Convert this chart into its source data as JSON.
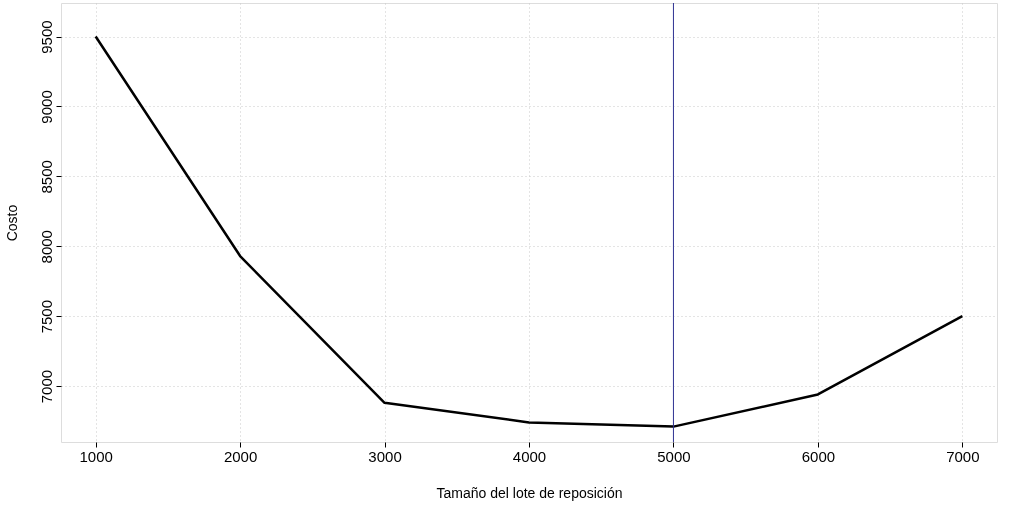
{
  "chart_data": {
    "type": "line",
    "xlabel": "Tamaño del lote de reposición",
    "ylabel": "Costo",
    "x": [
      1000,
      2000,
      3000,
      4000,
      5000,
      6000,
      7000
    ],
    "series": [
      {
        "color": "#000000",
        "values": [
          9500,
          7930,
          6880,
          6740,
          6710,
          6940,
          7500
        ]
      }
    ],
    "xlim": [
      760,
      7240
    ],
    "xticks": [
      1000,
      2000,
      3000,
      4000,
      5000,
      6000,
      7000
    ],
    "ylim": [
      6600,
      9740
    ],
    "yticks": [
      7000,
      7500,
      8000,
      8500,
      9000,
      9500
    ],
    "grid": true,
    "marker": "none",
    "line_style": "solid",
    "ref_lines": [
      {
        "axis": "x",
        "value": 5000,
        "label": null,
        "color": "#2e3192"
      }
    ]
  }
}
